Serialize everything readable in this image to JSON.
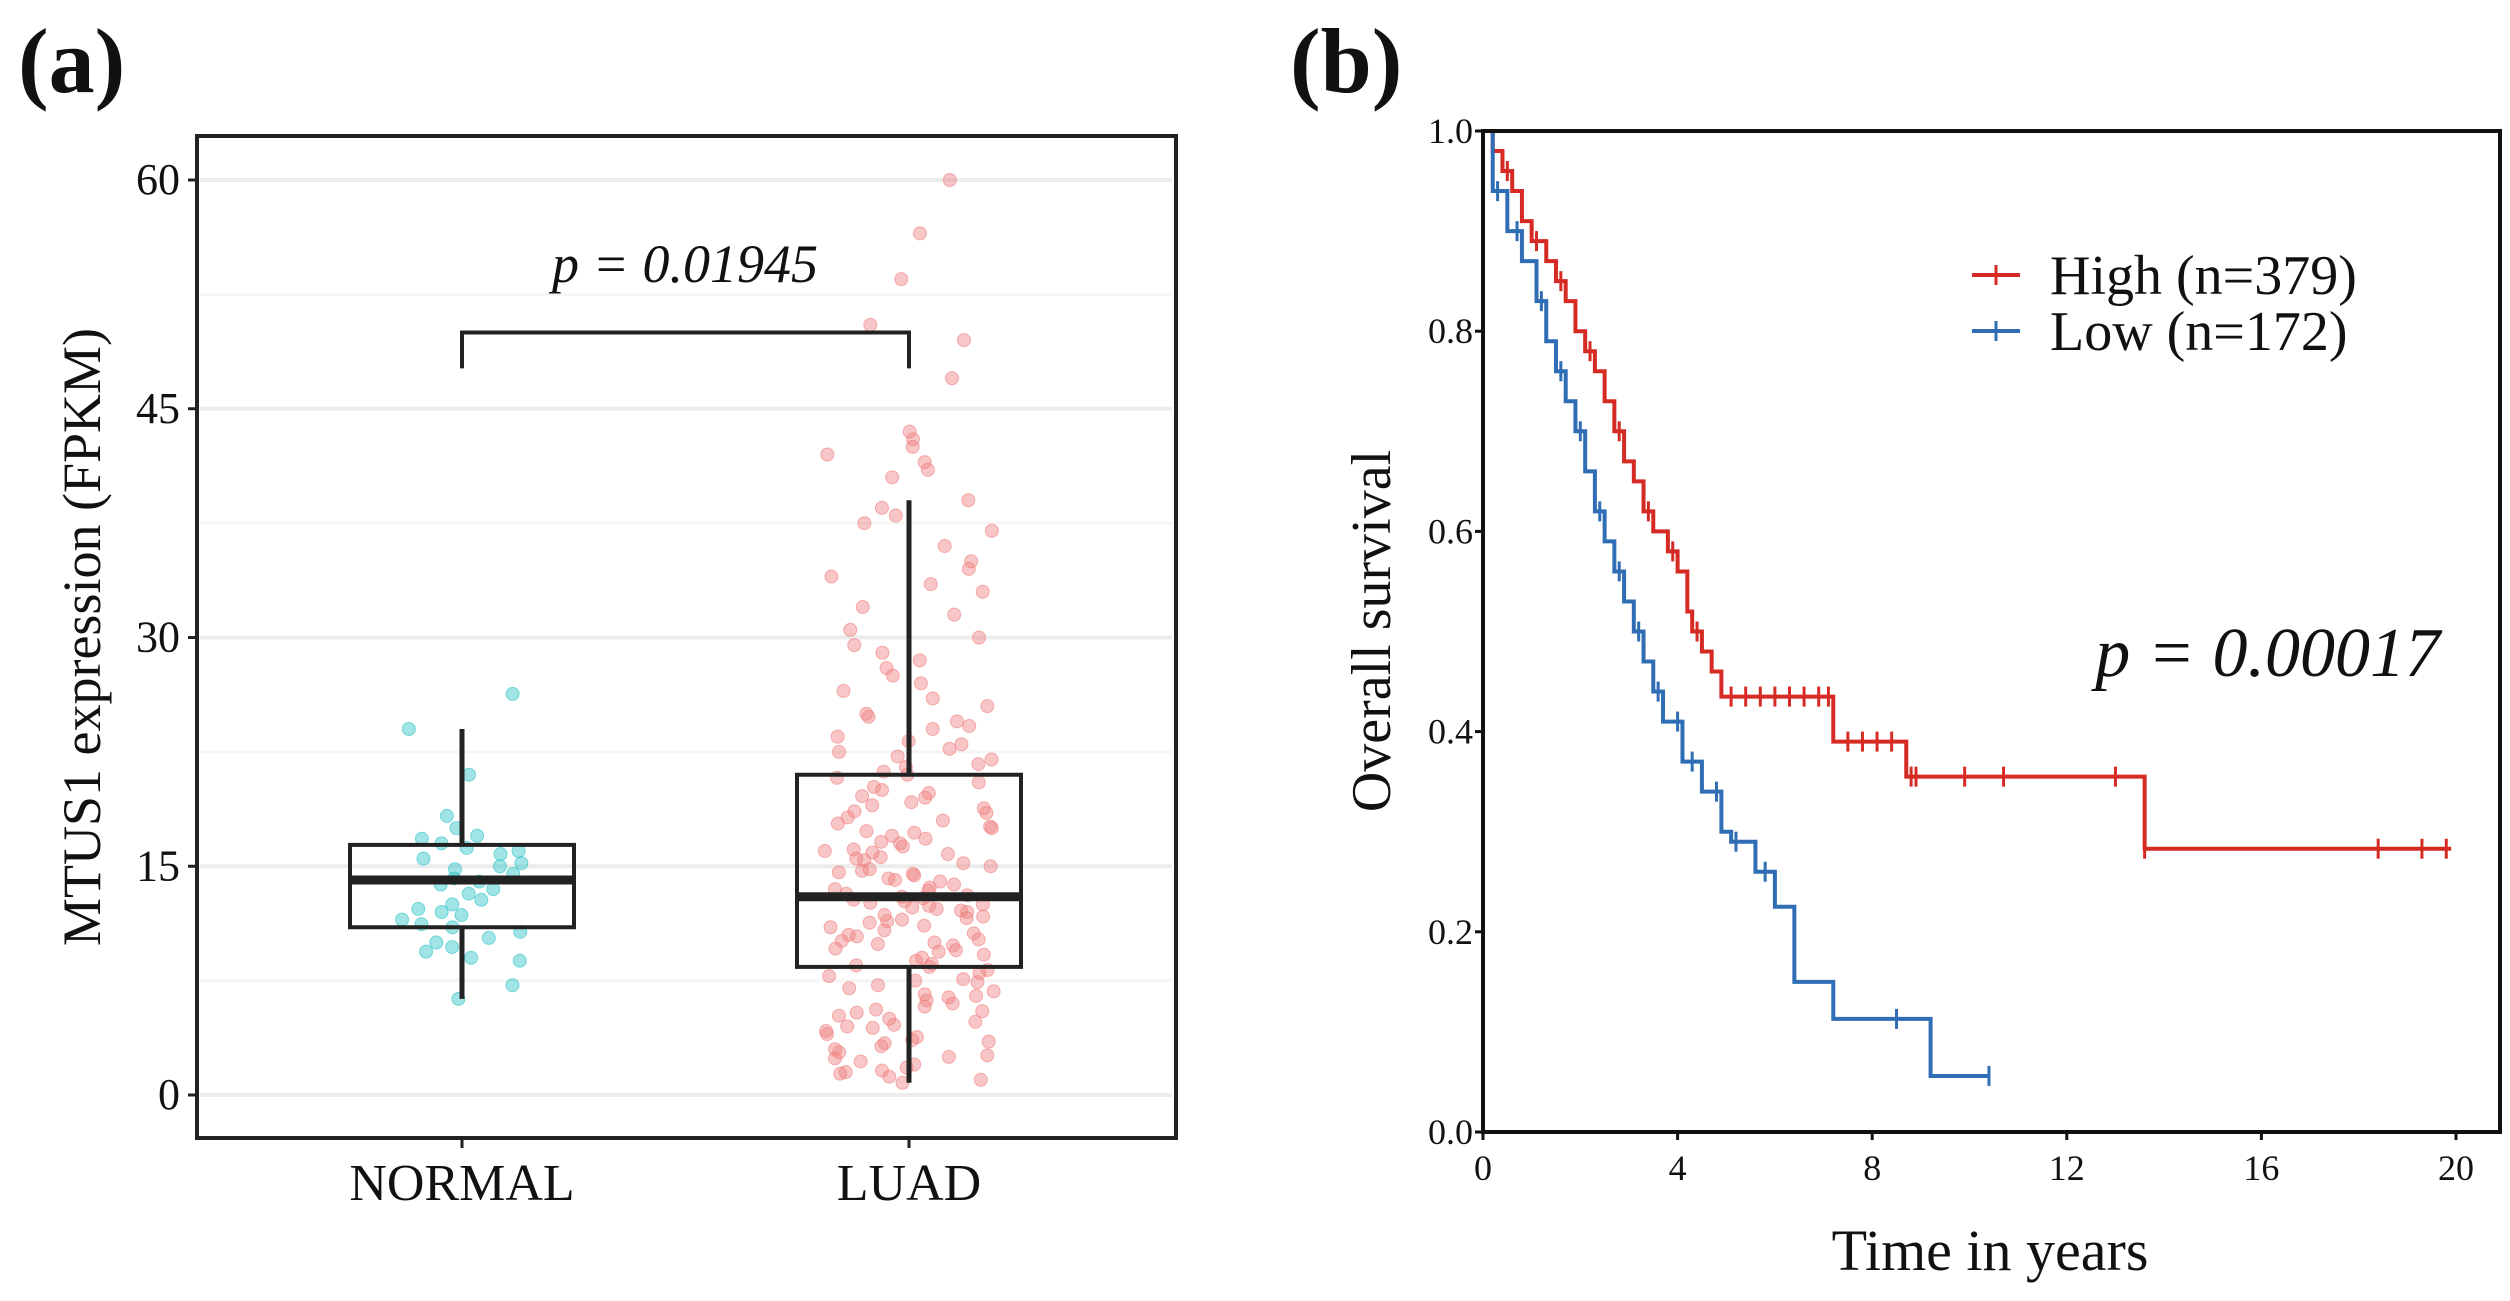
{
  "chart_data": [
    {
      "panel_label": "(a)",
      "type": "box",
      "ylabel": "MTUS1 expression (FPKM)",
      "xlabel": "",
      "ylim": [
        -4,
        65
      ],
      "yticks": [
        0,
        15,
        30,
        45,
        60
      ],
      "ytick_labels": [
        "0",
        "15",
        "30",
        "45",
        "60"
      ],
      "categories": [
        "NORMAL",
        "LUAD"
      ],
      "colors": {
        "NORMAL": "#2ec4c6",
        "LUAD": "#f08080"
      },
      "boxes": [
        {
          "name": "NORMAL",
          "whisker_low": 6.3,
          "q1": 11.0,
          "median": 14.1,
          "q3": 16.4,
          "whisker_high": 24.0
        },
        {
          "name": "LUAD",
          "whisker_low": 0.8,
          "q1": 8.4,
          "median": 13.0,
          "q3": 21.0,
          "whisker_high": 39.0
        }
      ],
      "points": {
        "NORMAL": [
          26.3,
          24,
          21,
          18.3,
          17.5,
          17,
          16.8,
          16.5,
          16.2,
          16,
          15.8,
          15.5,
          15.2,
          15,
          14.8,
          14.5,
          14.2,
          14,
          13.8,
          13.5,
          13.2,
          12.8,
          12.5,
          12.2,
          12,
          11.8,
          11.5,
          11.2,
          11,
          10.7,
          10.3,
          10,
          9.7,
          9.4,
          9,
          8.8,
          7.2,
          6.3
        ],
        "LUAD": [
          60,
          56.5,
          53.5,
          50.5,
          49.5,
          47,
          43.5,
          43,
          42.5,
          42,
          41.5,
          41,
          40.5,
          39,
          38.5,
          38,
          37.5,
          37,
          36,
          35,
          34.5,
          34,
          33.5,
          33,
          32,
          31.5,
          30.5,
          30,
          29.5,
          29,
          28.5,
          28,
          27.5,
          27,
          26.5,
          26,
          25.5,
          25,
          24.8,
          24.5,
          24.2,
          24,
          23.5,
          23.2,
          23,
          22.7,
          22.5,
          22.2,
          22,
          21.7,
          21.5,
          21.2,
          21,
          20.8,
          20.5,
          20.2,
          20,
          19.8,
          19.5,
          19.2,
          19,
          18.8,
          18.5,
          18.2,
          18,
          17.8,
          17.5,
          17.2,
          17,
          16.8,
          16.5,
          16.3,
          16,
          15.8,
          15.6,
          15.4,
          15.2,
          15,
          14.8,
          14.6,
          14.4,
          14.2,
          14,
          13.8,
          13.6,
          13.4,
          13.2,
          13,
          12.9,
          12.8,
          12.6,
          12.5,
          12.4,
          12.2,
          12,
          11.8,
          11.6,
          11.5,
          11.3,
          11.1,
          11,
          10.8,
          10.6,
          10.4,
          10.2,
          10,
          9.8,
          9.6,
          9.4,
          9.2,
          9,
          8.8,
          8.6,
          8.4,
          8.2,
          8,
          7.8,
          7.6,
          7.4,
          7.2,
          7,
          6.8,
          6.6,
          6.4,
          6.2,
          6,
          5.8,
          5.6,
          5.4,
          5.2,
          5,
          4.8,
          4.6,
          4.4,
          4.2,
          4,
          3.8,
          3.6,
          3.4,
          3.2,
          3,
          2.8,
          2.6,
          2.4,
          2.2,
          2,
          1.8,
          1.6,
          1.4,
          1.2,
          1,
          0.8,
          19.6,
          18.6,
          17.6,
          16.6,
          15.5,
          14.5,
          13.5,
          12.3,
          11.4,
          10.5,
          9.5,
          8.5,
          7.5,
          6.5,
          5.5,
          4.5,
          3.5,
          2.5,
          1.5,
          16.1,
          14.1,
          12.1,
          10.1,
          13.1,
          11.7,
          9.9,
          12.7,
          14.7,
          15.9,
          17.3
        ]
      },
      "annotation": {
        "text": "p = 0.01945",
        "bracket_y": 50,
        "bracket_drop_to": 48.3
      }
    },
    {
      "panel_label": "(b)",
      "type": "line",
      "subtype": "kaplan-meier",
      "xlabel": "Time in years",
      "ylabel": "Overall survival",
      "xlim": [
        0,
        20.8
      ],
      "ylim": [
        0,
        1
      ],
      "xticks": [
        0,
        4,
        8,
        12,
        16,
        20
      ],
      "xtick_labels": [
        "0",
        "4",
        "8",
        "12",
        "16",
        "20"
      ],
      "yticks": [
        0,
        0.2,
        0.4,
        0.6,
        0.8,
        1.0
      ],
      "ytick_labels": [
        "0.0",
        "0.2",
        "0.4",
        "0.6",
        "0.8",
        "1.0"
      ],
      "legend_position": "top-right",
      "annotation": "p = 0.00017",
      "series": [
        {
          "name": "High",
          "legend_label": "High (n=379)",
          "color": "#d62b25",
          "steps": [
            [
              0,
              1.0
            ],
            [
              0.2,
              0.98
            ],
            [
              0.4,
              0.96
            ],
            [
              0.6,
              0.94
            ],
            [
              0.8,
              0.91
            ],
            [
              1.0,
              0.89
            ],
            [
              1.3,
              0.87
            ],
            [
              1.5,
              0.85
            ],
            [
              1.7,
              0.83
            ],
            [
              1.9,
              0.8
            ],
            [
              2.1,
              0.78
            ],
            [
              2.3,
              0.76
            ],
            [
              2.5,
              0.73
            ],
            [
              2.7,
              0.7
            ],
            [
              2.9,
              0.67
            ],
            [
              3.1,
              0.65
            ],
            [
              3.3,
              0.62
            ],
            [
              3.5,
              0.6
            ],
            [
              3.8,
              0.58
            ],
            [
              4.0,
              0.56
            ],
            [
              4.2,
              0.52
            ],
            [
              4.3,
              0.5
            ],
            [
              4.5,
              0.48
            ],
            [
              4.7,
              0.46
            ],
            [
              4.9,
              0.435
            ],
            [
              7.2,
              0.39
            ],
            [
              8.7,
              0.355
            ],
            [
              13.6,
              0.283
            ],
            [
              19.9,
              0.283
            ]
          ],
          "censored": [
            0.5,
            1.1,
            1.6,
            2.2,
            2.8,
            3.4,
            3.9,
            4.4,
            5.1,
            5.4,
            5.7,
            6.0,
            6.3,
            6.6,
            6.9,
            7.1,
            7.5,
            7.8,
            8.1,
            8.4,
            8.8,
            8.9,
            9.9,
            10.7,
            13.0,
            13.6,
            18.4,
            19.3,
            19.8
          ]
        },
        {
          "name": "Low",
          "legend_label": "Low  (n=172)",
          "color": "#2f6db5",
          "steps": [
            [
              0,
              1.0
            ],
            [
              0.2,
              0.94
            ],
            [
              0.5,
              0.9
            ],
            [
              0.8,
              0.87
            ],
            [
              1.1,
              0.83
            ],
            [
              1.3,
              0.79
            ],
            [
              1.5,
              0.76
            ],
            [
              1.7,
              0.73
            ],
            [
              1.9,
              0.7
            ],
            [
              2.1,
              0.66
            ],
            [
              2.3,
              0.62
            ],
            [
              2.5,
              0.59
            ],
            [
              2.7,
              0.56
            ],
            [
              2.9,
              0.53
            ],
            [
              3.1,
              0.5
            ],
            [
              3.3,
              0.47
            ],
            [
              3.5,
              0.44
            ],
            [
              3.7,
              0.41
            ],
            [
              4.1,
              0.37
            ],
            [
              4.5,
              0.34
            ],
            [
              4.9,
              0.3
            ],
            [
              5.1,
              0.29
            ],
            [
              5.6,
              0.26
            ],
            [
              6.0,
              0.225
            ],
            [
              6.4,
              0.15
            ],
            [
              7.2,
              0.113
            ],
            [
              9.2,
              0.056
            ],
            [
              10.4,
              0.056
            ]
          ],
          "censored": [
            0.3,
            0.7,
            1.2,
            1.6,
            2.0,
            2.4,
            2.8,
            3.2,
            3.6,
            4.0,
            4.3,
            4.8,
            5.2,
            5.8,
            8.5,
            10.4
          ]
        }
      ]
    }
  ]
}
